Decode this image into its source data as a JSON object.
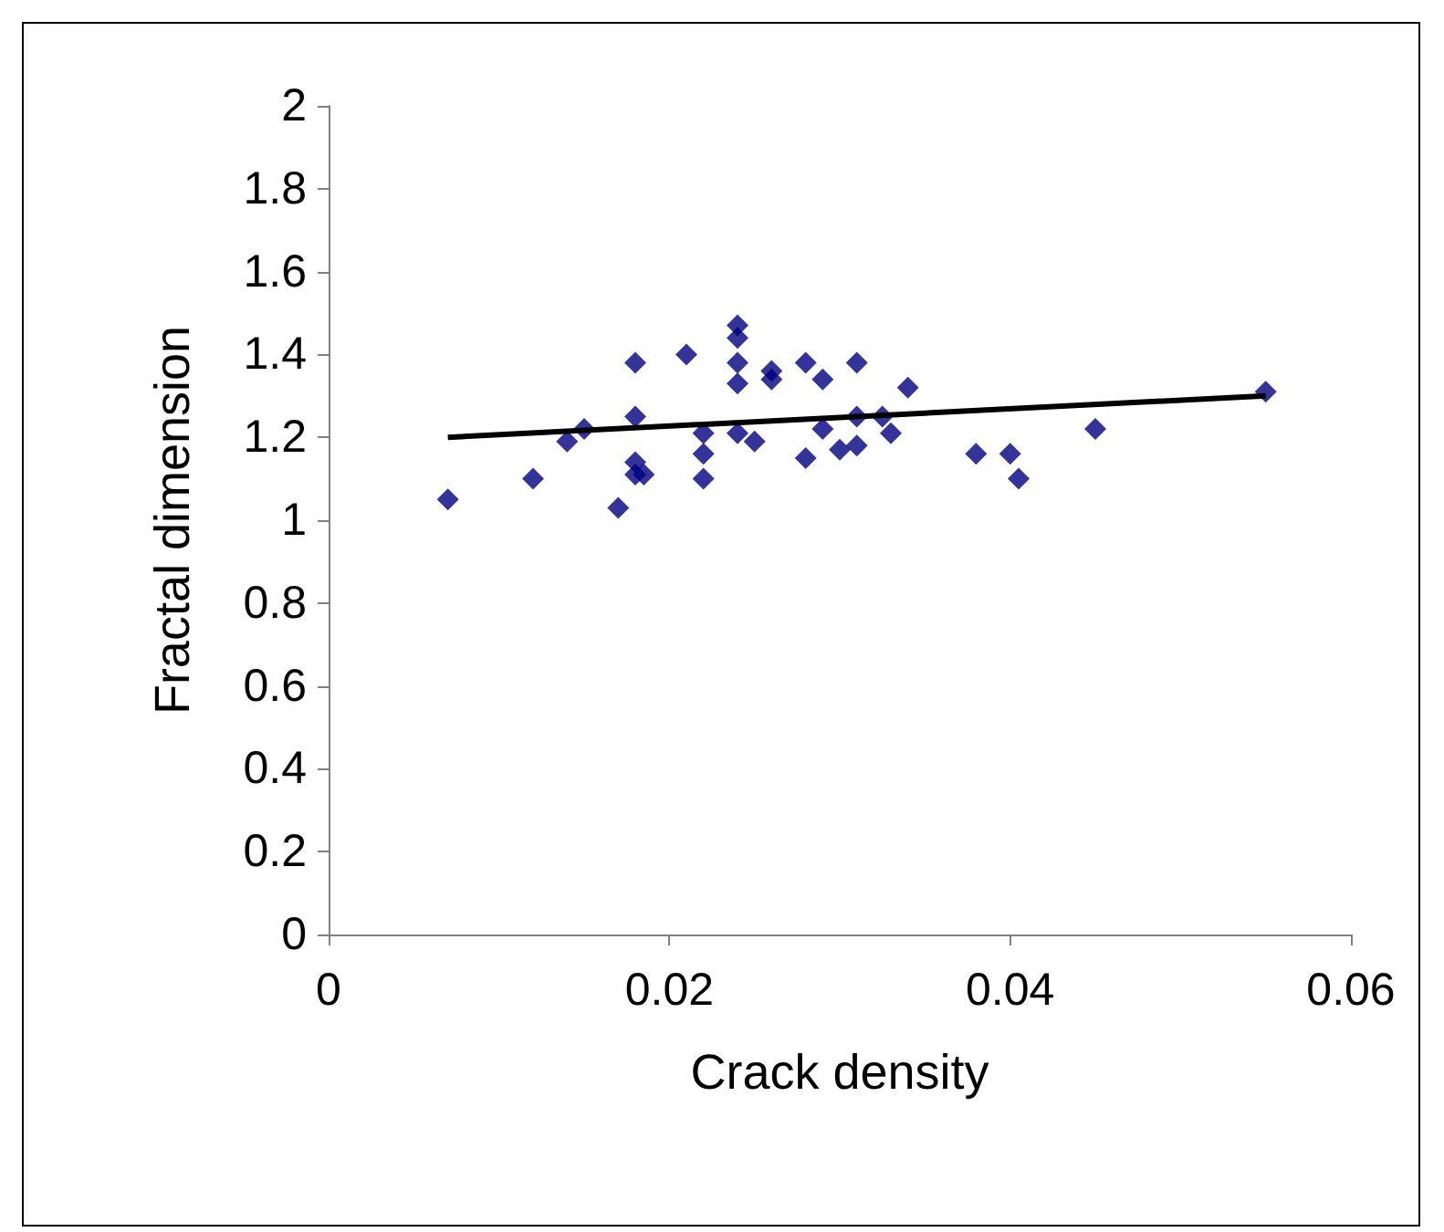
{
  "chart_data": {
    "type": "scatter",
    "xlabel": "Crack density",
    "ylabel": "Fractal dimension",
    "xlim": [
      0,
      0.06
    ],
    "xticks": [
      0,
      0.02,
      0.04,
      0.06
    ],
    "ylim": [
      0,
      2
    ],
    "yticks": [
      0,
      0.2,
      0.4,
      0.6,
      0.8,
      1,
      1.2,
      1.4,
      1.6,
      1.8,
      2
    ],
    "grid": false,
    "marker": "diamond",
    "series": [
      {
        "color": "#000080",
        "x": [
          0.007,
          0.012,
          0.014,
          0.015,
          0.017,
          0.018,
          0.018,
          0.018,
          0.018,
          0.0185,
          0.021,
          0.022,
          0.022,
          0.022,
          0.024,
          0.024,
          0.024,
          0.024,
          0.024,
          0.025,
          0.026,
          0.026,
          0.028,
          0.028,
          0.029,
          0.029,
          0.03,
          0.031,
          0.031,
          0.031,
          0.0325,
          0.033,
          0.034,
          0.038,
          0.04,
          0.0405,
          0.045,
          0.055
        ],
        "values": [
          1.05,
          1.1,
          1.19,
          1.22,
          1.03,
          1.38,
          1.25,
          1.14,
          1.11,
          1.11,
          1.4,
          1.21,
          1.16,
          1.1,
          1.47,
          1.44,
          1.38,
          1.33,
          1.21,
          1.19,
          1.36,
          1.34,
          1.38,
          1.15,
          1.34,
          1.22,
          1.17,
          1.18,
          1.38,
          1.25,
          1.25,
          1.21,
          1.32,
          1.16,
          1.16,
          1.1,
          1.22,
          1.31
        ]
      },
      {
        "type": "line",
        "color": "#000000",
        "x": [
          0.007,
          0.055
        ],
        "values": [
          1.2,
          1.3
        ],
        "marker": "none"
      }
    ]
  }
}
